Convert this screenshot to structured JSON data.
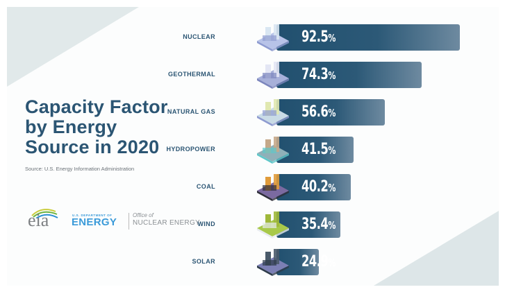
{
  "chart_data": {
    "type": "bar",
    "orientation": "horizontal",
    "title": "Capacity Factor by Energy Source in 2020",
    "title_lines": [
      "Capacity Factor",
      "by Energy",
      "Source in 2020"
    ],
    "source": "Source: U.S. Energy Information Administration",
    "categories": [
      "NUCLEAR",
      "GEOTHERMAL",
      "NATURAL GAS",
      "HYDROPOWER",
      "COAL",
      "WIND",
      "SOLAR"
    ],
    "values": [
      92.5,
      74.3,
      56.6,
      41.5,
      40.2,
      35.4,
      24.9
    ],
    "value_labels": [
      "92.5",
      "74.3",
      "56.6",
      "41.5",
      "40.2",
      "35.4",
      "24.9"
    ],
    "unit": "%",
    "icons": [
      "nuclear-plant-icon",
      "geothermal-plant-icon",
      "natural-gas-plant-icon",
      "hydropower-dam-icon",
      "coal-mine-icon",
      "wind-turbines-icon",
      "solar-panels-icon"
    ],
    "xlabel": "",
    "ylabel": "",
    "xlim": [
      0,
      100
    ],
    "grid": false,
    "legend": "none",
    "bar_color": "#21506f"
  },
  "logos": {
    "eia": "eia",
    "doe_small": "U.S. DEPARTMENT OF",
    "doe_big": "ENERGY",
    "ne_small": "Office of",
    "ne_big": "NUCLEAR ENERGY"
  },
  "colors": {
    "title": "#2b5573",
    "doe_blue": "#3a9ad9",
    "bar_start": "#21506f",
    "bar_end": "#6e8aa0"
  }
}
